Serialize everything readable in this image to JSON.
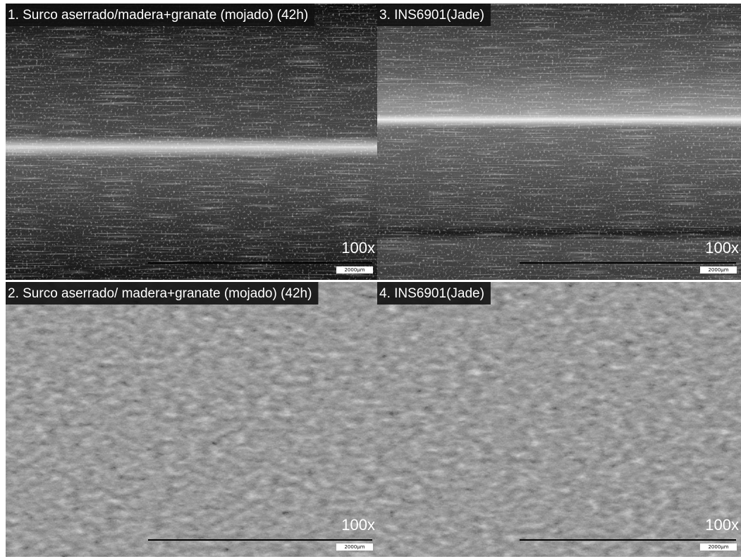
{
  "panels": [
    {
      "label": "1. Surco aserrado/madera+granate (mojado) (42h)",
      "magnification": "100x",
      "scale": "2000μm"
    },
    {
      "label": "3. INS6901(Jade)",
      "magnification": "100x",
      "scale": "2000μm"
    },
    {
      "label": "2. Surco aserrado/ madera+granate (mojado) (42h)",
      "magnification": "100x",
      "scale": "2000μm"
    },
    {
      "label": "4. INS6901(Jade)",
      "magnification": "100x",
      "scale": "2000μm"
    }
  ]
}
